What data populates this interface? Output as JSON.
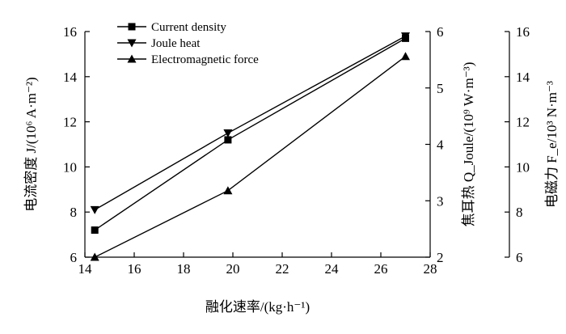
{
  "chart_data": {
    "type": "line",
    "xlabel": "融化速率/(kg·h⁻¹)",
    "xlim": [
      14,
      28
    ],
    "xticks": [
      14,
      16,
      18,
      20,
      22,
      24,
      26,
      28
    ],
    "axes": {
      "left": {
        "label": "电流密度 J/(10⁶ A·m⁻²)",
        "ylim": [
          6,
          16
        ],
        "ticks": [
          6,
          8,
          10,
          12,
          14,
          16
        ]
      },
      "right1": {
        "label": "焦耳热 Q_Joule/(10⁹ W·m⁻³)",
        "ylim": [
          2,
          6
        ],
        "ticks": [
          2,
          3,
          4,
          5,
          6
        ]
      },
      "right2": {
        "label": "电磁力 F_e/10³ N·m⁻³",
        "ylim": [
          6,
          16
        ],
        "ticks": [
          6,
          8,
          10,
          12,
          14,
          16
        ]
      }
    },
    "series": [
      {
        "name": "Current density",
        "marker": "square",
        "axis": "left",
        "x": [
          14.4,
          19.8,
          27.0
        ],
        "y": [
          7.2,
          11.2,
          15.7
        ]
      },
      {
        "name": "Joule heat",
        "marker": "triangle-down",
        "axis": "left",
        "x": [
          14.4,
          19.8,
          27.0
        ],
        "y": [
          8.1,
          11.5,
          15.8
        ]
      },
      {
        "name": "Electromagnetic force",
        "marker": "triangle-up",
        "axis": "left",
        "x": [
          14.4,
          19.8,
          27.0
        ],
        "y": [
          6.0,
          8.95,
          14.9
        ]
      }
    ],
    "legend_position": "top-left",
    "grid": false
  }
}
